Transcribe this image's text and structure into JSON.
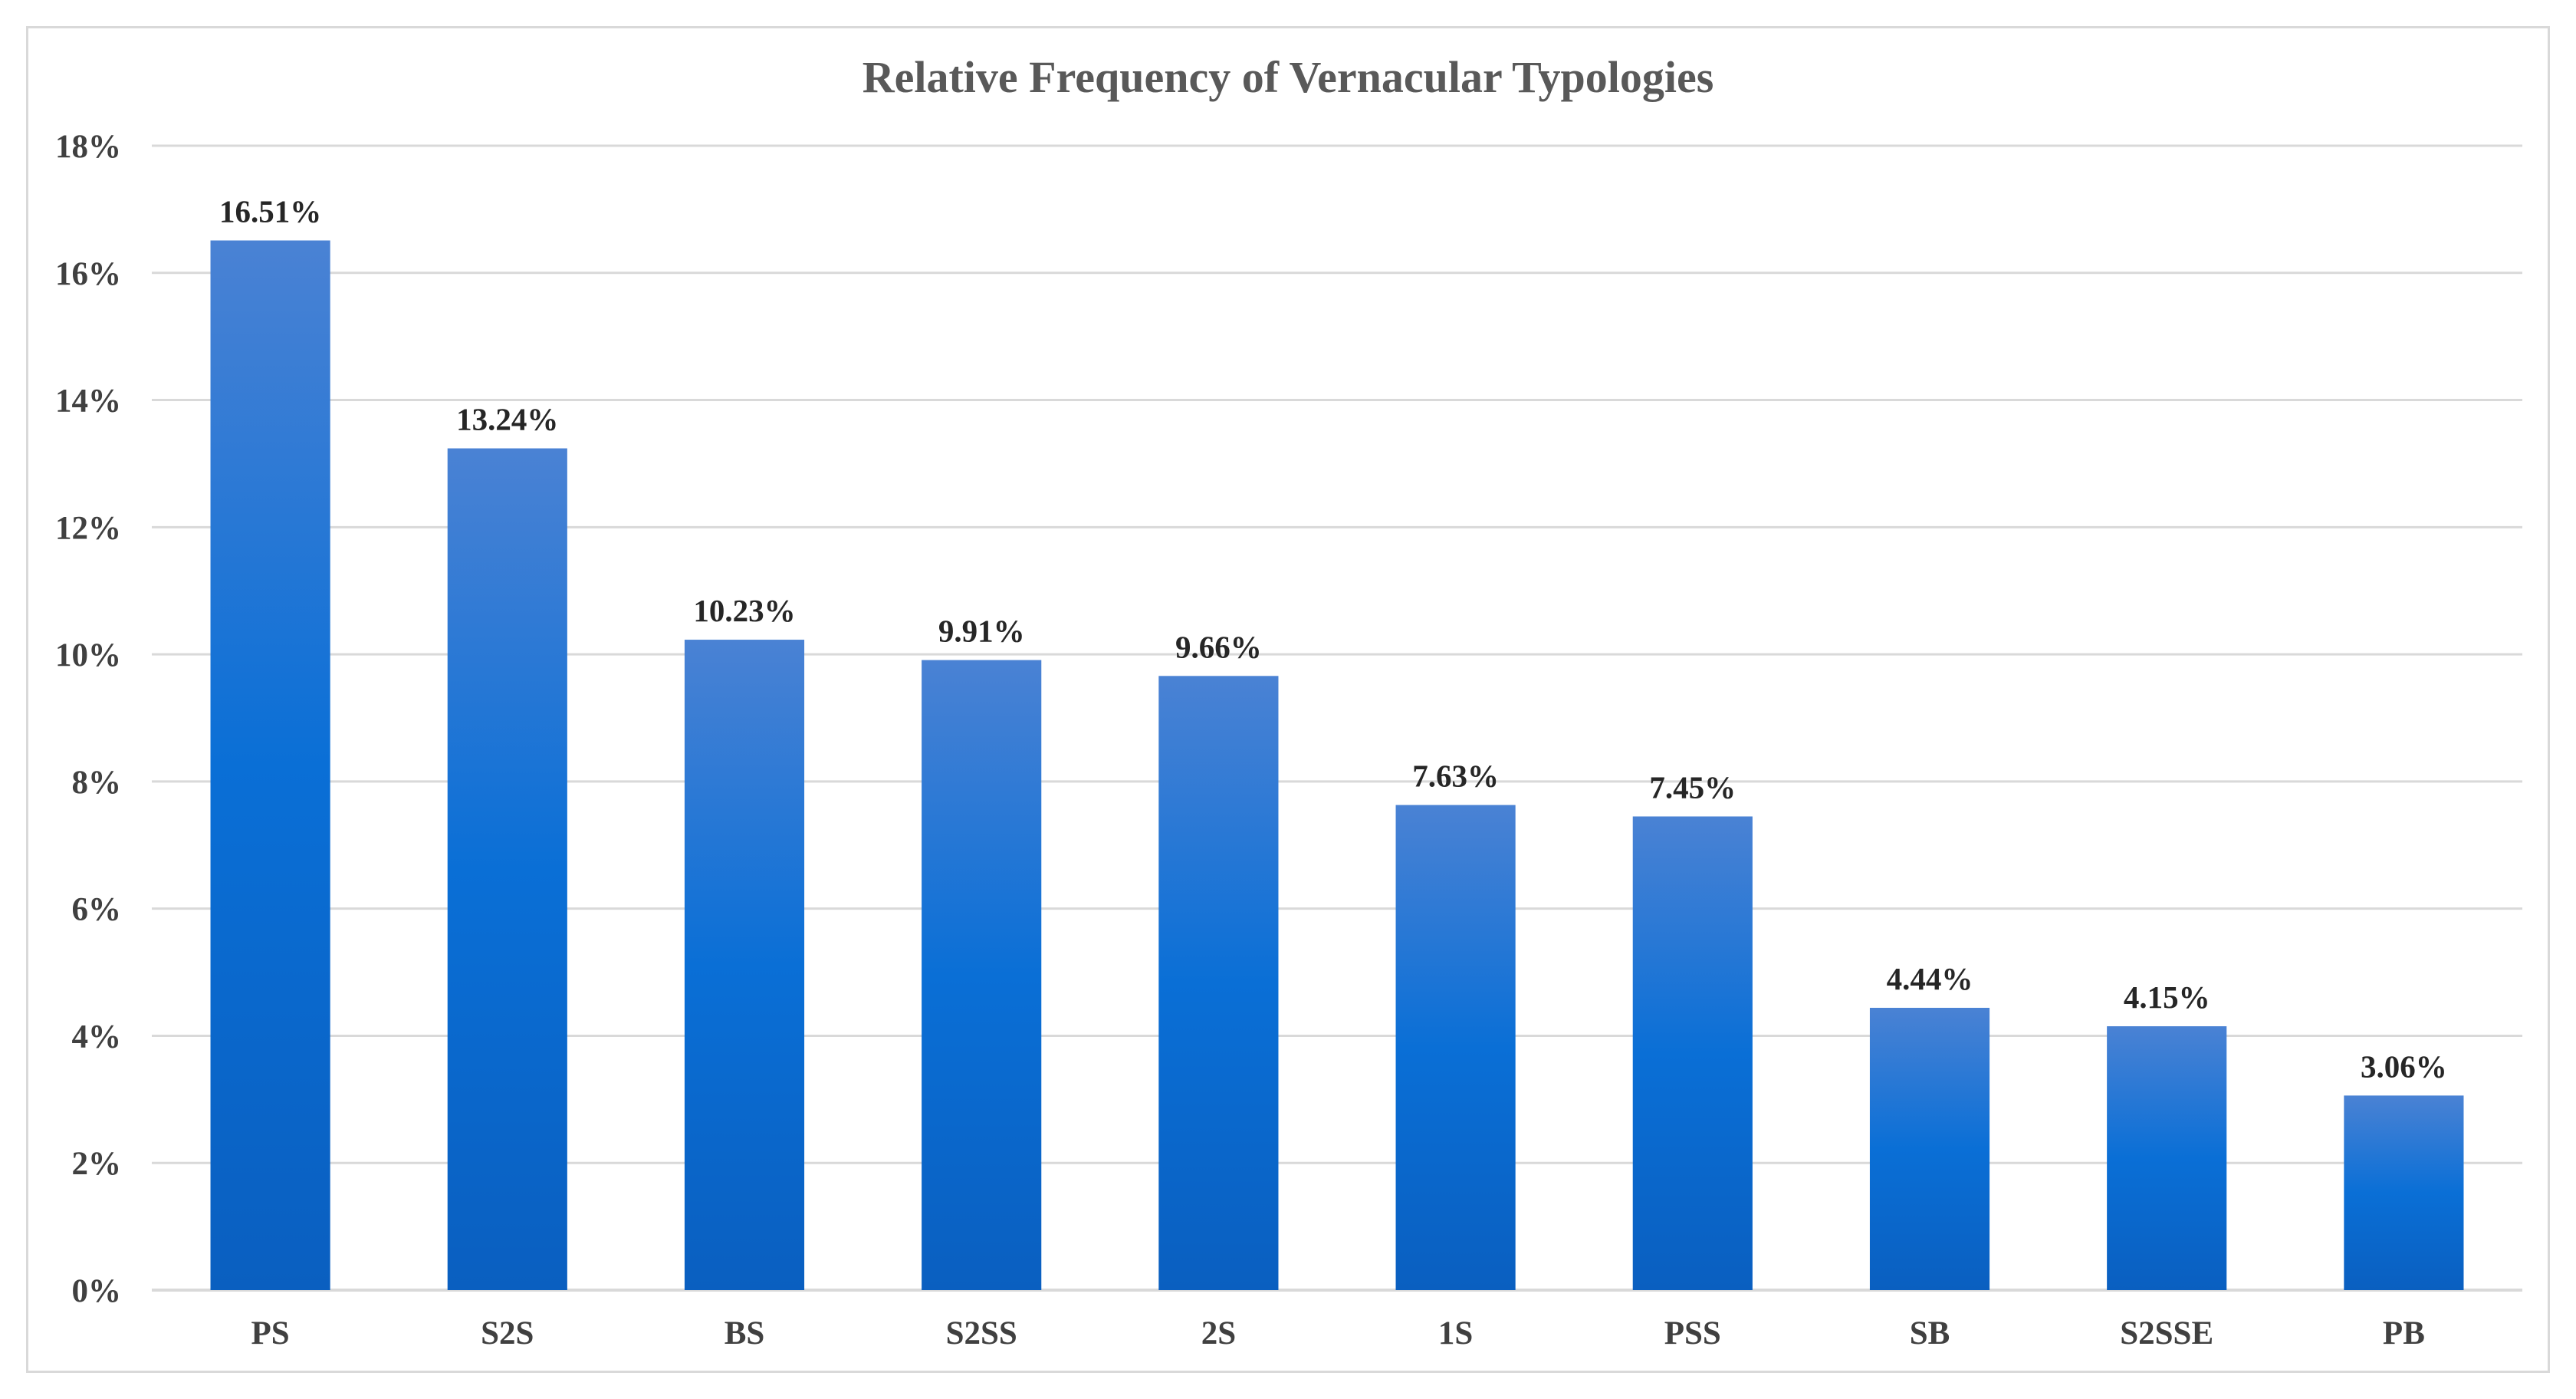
{
  "chart_data": {
    "type": "bar",
    "title": "Relative Frequency of Vernacular Typologies",
    "xlabel": "",
    "ylabel": "",
    "categories": [
      "PS",
      "S2S",
      "BS",
      "S2SS",
      "2S",
      "1S",
      "PSS",
      "SB",
      "S2SSE",
      "PB"
    ],
    "values": [
      16.51,
      13.24,
      10.23,
      9.91,
      9.66,
      7.63,
      7.45,
      4.44,
      4.15,
      3.06
    ],
    "data_labels": [
      "16.51%",
      "13.24%",
      "10.23%",
      "9.91%",
      "9.66%",
      "7.63%",
      "7.45%",
      "4.44%",
      "4.15%",
      "3.06%"
    ],
    "ylim": [
      0,
      18
    ],
    "yticks": [
      0,
      2,
      4,
      6,
      8,
      10,
      12,
      14,
      16,
      18
    ],
    "ytick_labels": [
      "0%",
      "2%",
      "4%",
      "6%",
      "8%",
      "10%",
      "12%",
      "14%",
      "16%",
      "18%"
    ],
    "grid": true,
    "legend": "none",
    "colors": {
      "bar_top": "#4a82d4",
      "bar_mid": "#0a6fd6",
      "bar_bottom": "#0a5fc0",
      "grid": "#d9d9d9",
      "axis": "#d9d9d9"
    }
  }
}
